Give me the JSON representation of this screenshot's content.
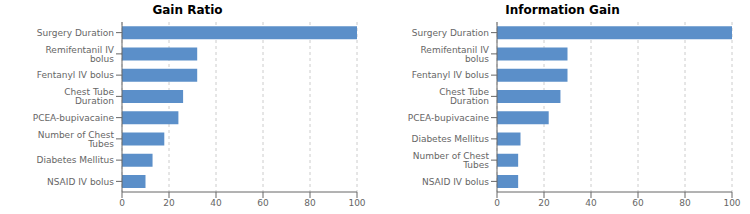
{
  "chart_data": [
    {
      "type": "bar",
      "orientation": "horizontal",
      "title": "Gain Ratio",
      "categories": [
        "Surgery Duration",
        "Remifentanil IV bolus",
        "Fentanyl IV bolus",
        "Chest Tube Duration",
        "PCEA-bupivacaine",
        "Number of Chest Tubes",
        "Diabetes Mellitus",
        "NSAID IV bolus"
      ],
      "values": [
        100,
        32,
        32,
        26,
        24,
        18,
        13,
        10
      ],
      "color": "#5b8fc9",
      "xlim": [
        0,
        100
      ],
      "xticks": [
        0,
        20,
        40,
        60,
        80,
        100
      ],
      "grid": true
    },
    {
      "type": "bar",
      "orientation": "horizontal",
      "title": "Information Gain",
      "categories": [
        "Surgery Duration",
        "Remifentanil IV bolus",
        "Fentanyl IV bolus",
        "Chest Tube Duration",
        "PCEA-bupivacaine",
        "Diabetes Mellitus",
        "Number of Chest Tubes",
        "NSAID IV bolus"
      ],
      "values": [
        100,
        30,
        30,
        27,
        22,
        10,
        9,
        9
      ],
      "color": "#5b8fc9",
      "xlim": [
        0,
        100
      ],
      "xticks": [
        0,
        20,
        40,
        60,
        80,
        100
      ],
      "grid": true
    }
  ]
}
